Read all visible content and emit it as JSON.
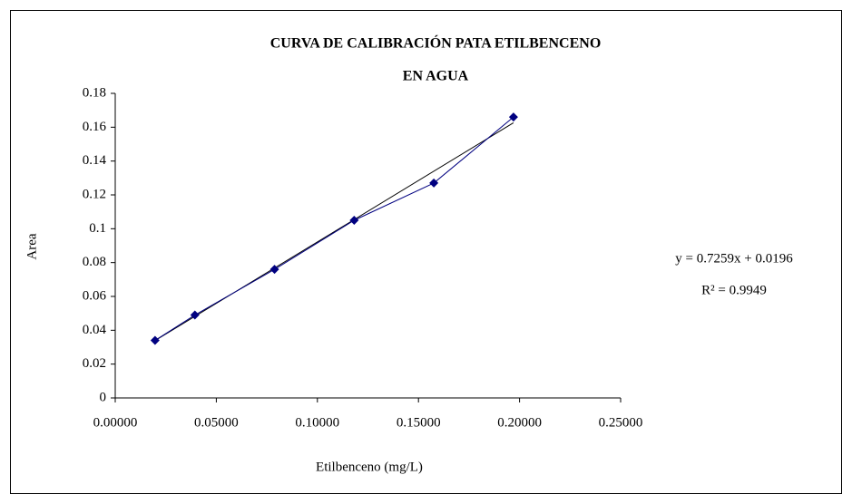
{
  "chart_data": {
    "type": "scatter",
    "title": [
      "CURVA DE CALIBRACIÓN PATA ETILBENCENO",
      "EN AGUA"
    ],
    "x_label": "Etilbenceno (mg/L)",
    "y_label": "Area",
    "x": [
      0.0197,
      0.0394,
      0.0788,
      0.1182,
      0.1576,
      0.197
    ],
    "series": [
      {
        "name": "Area",
        "color": "#000080",
        "values": [
          0.034,
          0.049,
          0.076,
          0.105,
          0.127,
          0.166
        ]
      }
    ],
    "trendline": {
      "slope": 0.7259,
      "intercept": 0.0196,
      "color": "#000000",
      "equation": "y = 0.7259x + 0.0196",
      "r2": 0.9949,
      "r2_label": "R² = 0.9949"
    },
    "xlim": [
      0,
      0.25
    ],
    "xticks": [
      {
        "value": 0,
        "label": "0.00000"
      },
      {
        "value": 0.05,
        "label": "0.05000"
      },
      {
        "value": 0.1,
        "label": "0.10000"
      },
      {
        "value": 0.15,
        "label": "0.15000"
      },
      {
        "value": 0.2,
        "label": "0.20000"
      },
      {
        "value": 0.25,
        "label": "0.25000"
      }
    ],
    "ylim": [
      0,
      0.18
    ],
    "yticks": [
      0,
      0.02,
      0.04,
      0.06,
      0.08,
      0.1,
      0.12,
      0.14,
      0.16,
      0.18
    ],
    "grid": false
  }
}
